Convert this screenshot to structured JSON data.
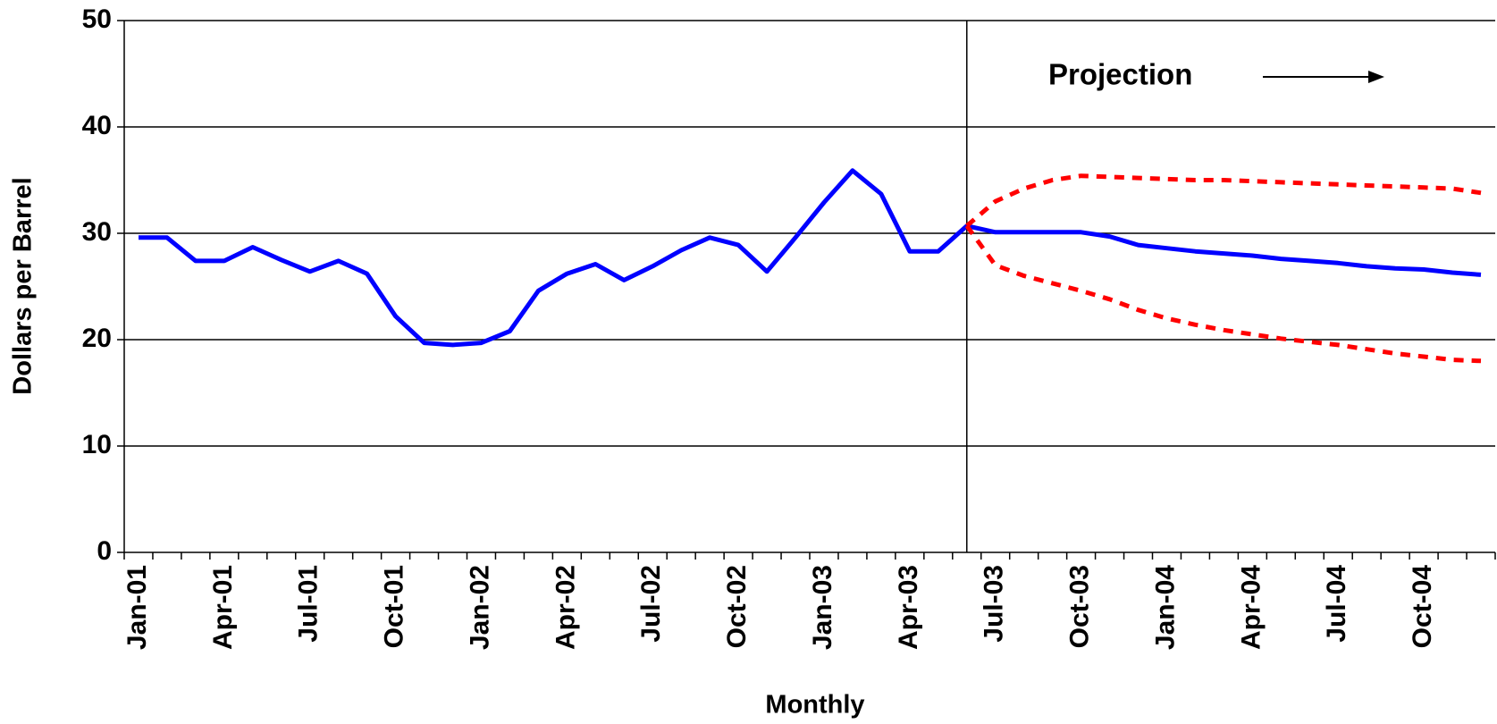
{
  "chart_data": {
    "type": "line",
    "y_label": "Dollars per Barrel",
    "x_label": "Monthly",
    "annotation": "Projection",
    "categories": [
      "Jan-01",
      null,
      null,
      "Apr-01",
      null,
      null,
      "Jul-01",
      null,
      null,
      "Oct-01",
      null,
      null,
      "Jan-02",
      null,
      null,
      "Apr-02",
      null,
      null,
      "Jul-02",
      null,
      null,
      "Oct-02",
      null,
      null,
      "Jan-03",
      null,
      null,
      "Apr-03",
      null,
      null,
      "Jul-03",
      null,
      null,
      "Oct-03",
      null,
      null,
      "Jan-04",
      null,
      null,
      "Apr-04",
      null,
      null,
      "Jul-04",
      null,
      null,
      "Oct-04",
      null,
      null
    ],
    "series": [
      {
        "color": "#0000ff",
        "dashed": false,
        "values": [
          29.6,
          29.6,
          27.4,
          27.4,
          28.7,
          27.5,
          26.4,
          27.4,
          26.2,
          22.2,
          19.7,
          19.5,
          19.7,
          20.8,
          24.6,
          26.2,
          27.1,
          25.6,
          26.9,
          28.4,
          29.6,
          28.9,
          26.4,
          29.6,
          32.9,
          35.9,
          33.7,
          28.3,
          28.3,
          30.7,
          30.1,
          30.1,
          30.1,
          30.1,
          29.7,
          28.9,
          28.6,
          28.3,
          28.1,
          27.9,
          27.6,
          27.4,
          27.2,
          26.9,
          26.7,
          26.6,
          26.3,
          26.1
        ]
      },
      {
        "color": "#ff0000",
        "dashed": true,
        "values": [
          null,
          null,
          null,
          null,
          null,
          null,
          null,
          null,
          null,
          null,
          null,
          null,
          null,
          null,
          null,
          null,
          null,
          null,
          null,
          null,
          null,
          null,
          null,
          null,
          null,
          null,
          null,
          null,
          null,
          30.7,
          33.0,
          34.2,
          35.0,
          35.4,
          35.3,
          35.2,
          35.1,
          35.0,
          35.0,
          34.9,
          34.8,
          34.7,
          34.6,
          34.5,
          34.4,
          34.3,
          34.2,
          33.8
        ]
      },
      {
        "color": "#ff0000",
        "dashed": true,
        "values": [
          null,
          null,
          null,
          null,
          null,
          null,
          null,
          null,
          null,
          null,
          null,
          null,
          null,
          null,
          null,
          null,
          null,
          null,
          null,
          null,
          null,
          null,
          null,
          null,
          null,
          null,
          null,
          null,
          null,
          30.7,
          27.0,
          26.0,
          25.3,
          24.6,
          23.8,
          22.8,
          22.0,
          21.4,
          20.9,
          20.5,
          20.1,
          19.8,
          19.5,
          19.1,
          18.7,
          18.4,
          18.1,
          18.0
        ]
      }
    ],
    "ylim": [
      0,
      50
    ],
    "yticks": [
      0,
      10,
      20,
      30,
      40,
      50
    ],
    "grid": true
  }
}
